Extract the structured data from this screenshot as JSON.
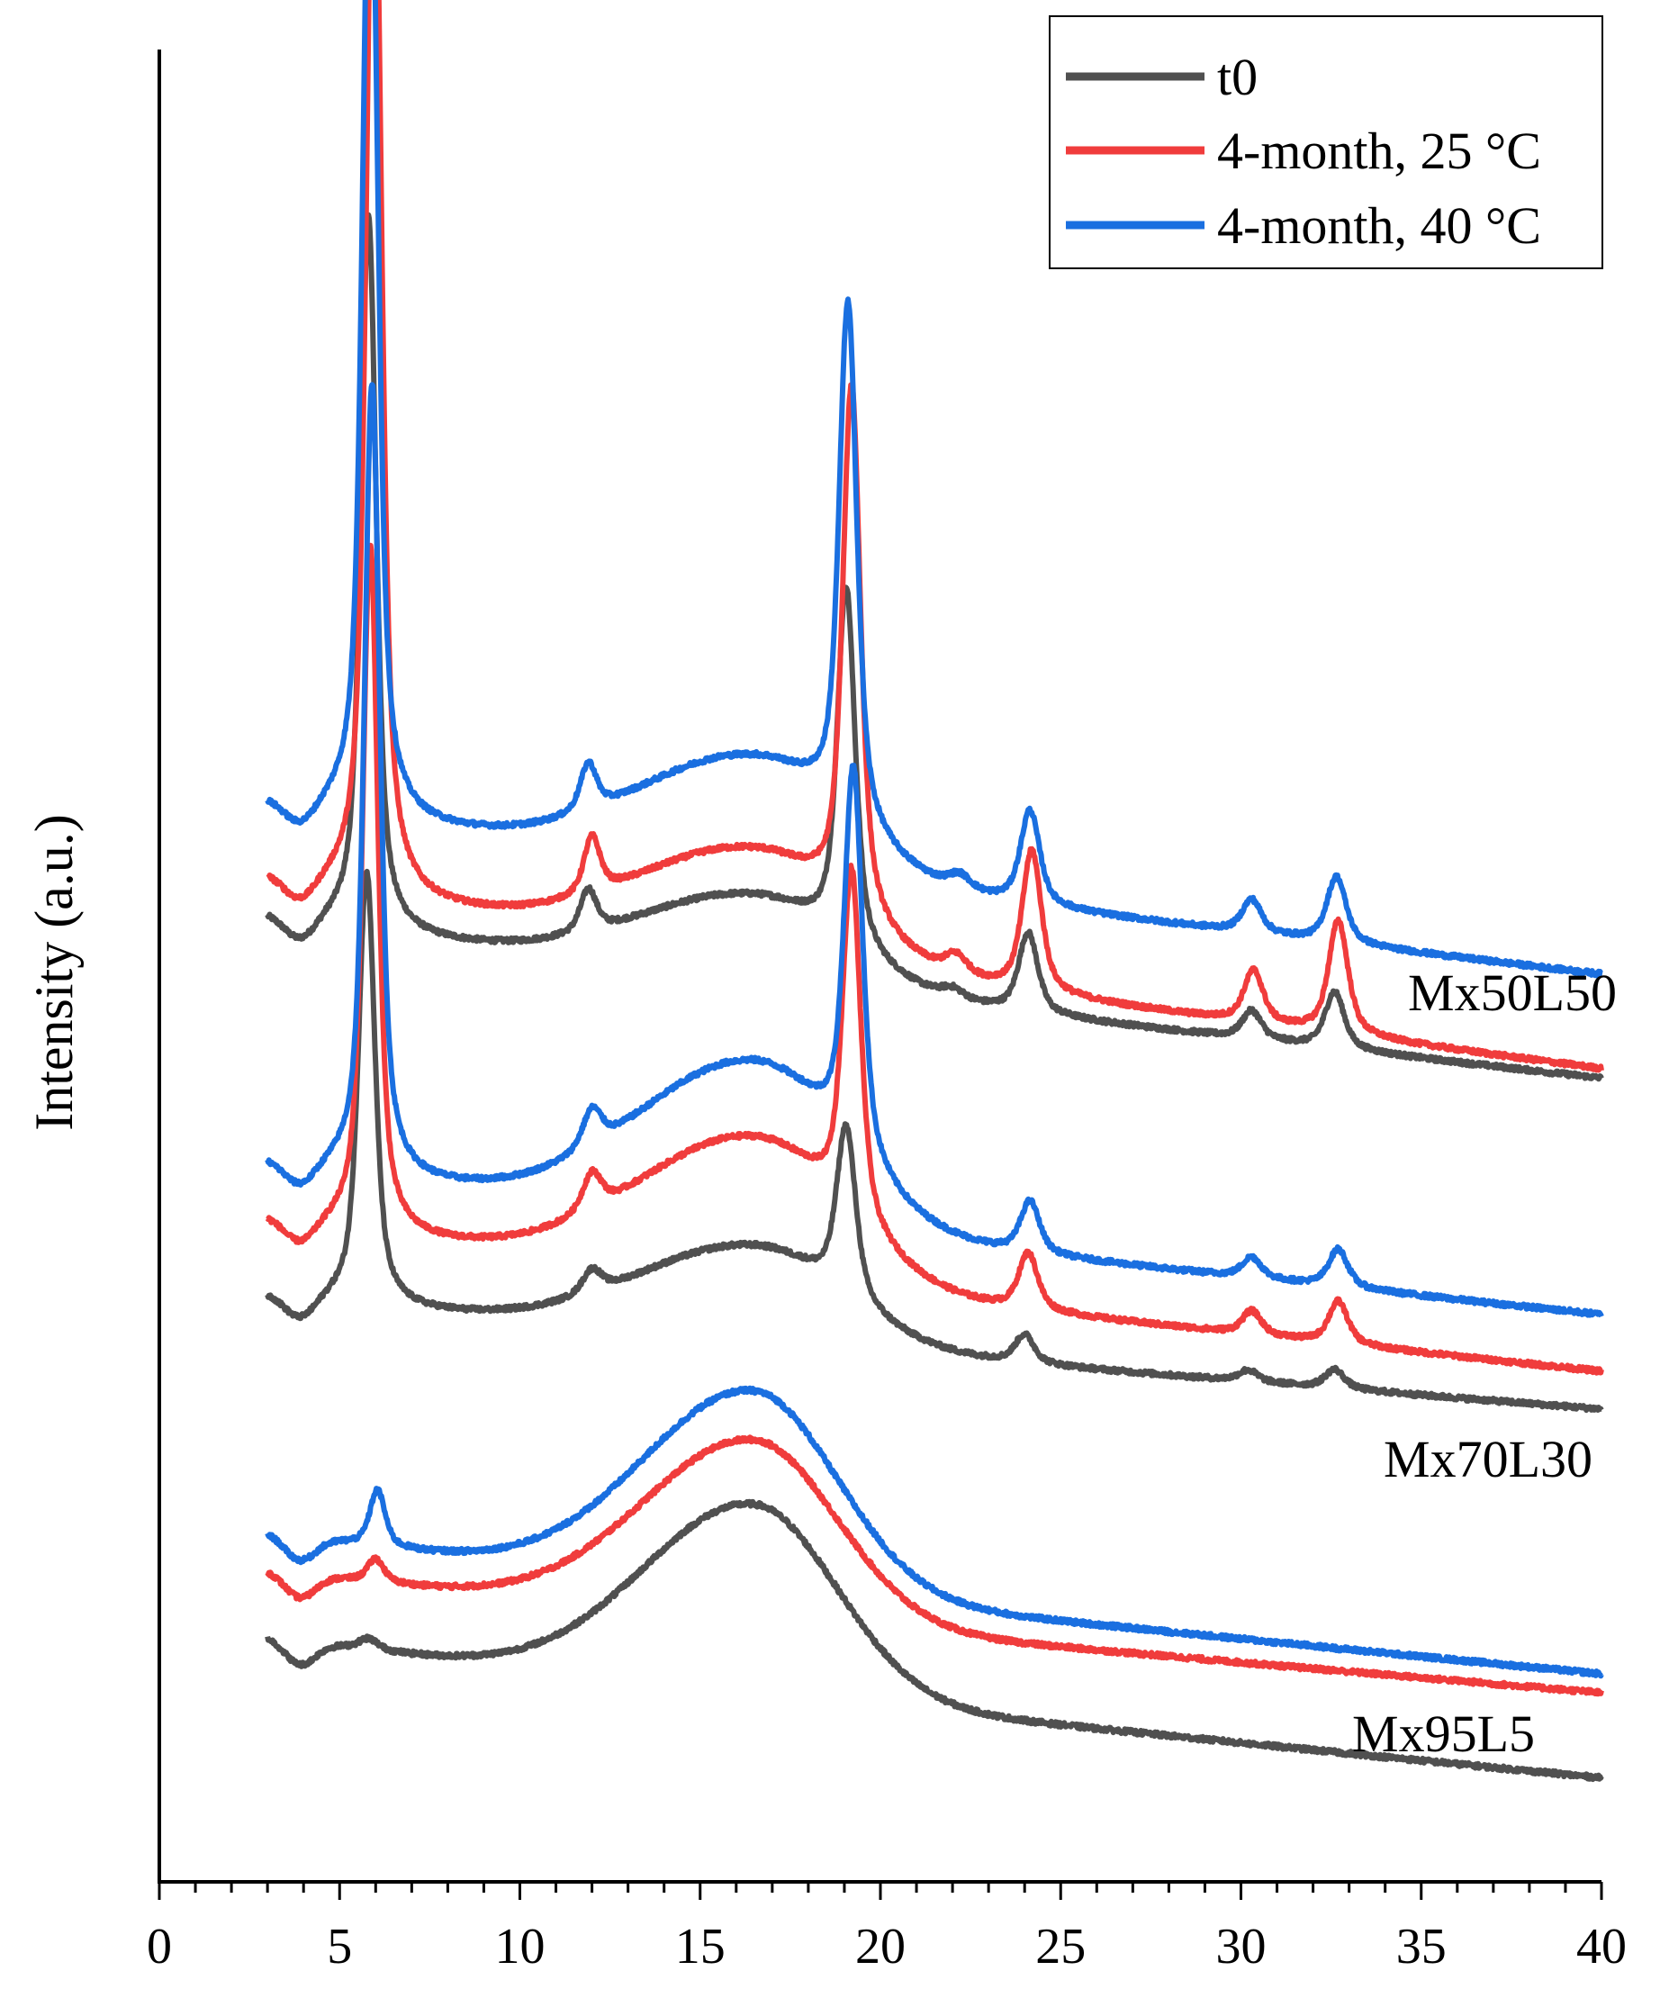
{
  "chart_data": {
    "type": "line",
    "title": "",
    "xlabel": "",
    "ylabel": "Intensity (a.u.)",
    "xlim": [
      0,
      40
    ],
    "x_major_ticks": [
      0,
      5,
      10,
      15,
      20,
      25,
      30,
      35,
      40
    ],
    "x_tick_labels": [
      "0",
      "5",
      "10",
      "15",
      "20",
      "25",
      "30",
      "35",
      "40"
    ],
    "yaxis_ticks": "none (arbitrary units, traces vertically offset)",
    "legend": {
      "placement": "top-right",
      "entries": [
        {
          "label": "t0",
          "color": "#505050"
        },
        {
          "label": "4-month, 25 °C",
          "color": "#f03c3c"
        },
        {
          "label": "4-month, 40 °C",
          "color": "#1a6fe0"
        }
      ]
    },
    "group_labels": [
      "Mx50L50",
      "Mx70L30",
      "Mx95L5"
    ],
    "x_range_of_traces": [
      3,
      40
    ],
    "description_of_traces": "Powder XRD patterns, three conditions per composition, stacked with vertical offsets (intensity in arbitrary units)",
    "groups": [
      {
        "name": "Mx50L50",
        "series": [
          {
            "name": "t0",
            "baseline_start": 2.2,
            "baseline_end": 0.5,
            "broad_hump": {
              "center": 16.5,
              "height": 0.9,
              "width": 4.5
            },
            "peaks": [
              {
                "x": 5.8,
                "height": 7.6,
                "width": 0.28
              },
              {
                "x": 11.9,
                "height": 0.45,
                "width": 0.3
              },
              {
                "x": 19.05,
                "height": 3.8,
                "width": 0.32
              },
              {
                "x": 22.0,
                "height": 0.1,
                "width": 0.4
              },
              {
                "x": 24.1,
                "height": 0.85,
                "width": 0.35
              },
              {
                "x": 30.3,
                "height": 0.3,
                "width": 0.35
              },
              {
                "x": 32.6,
                "height": 0.6,
                "width": 0.35
              }
            ]
          },
          {
            "name": "4-month, 25 °C",
            "baseline_start": 2.6,
            "baseline_end": 0.6,
            "broad_hump": {
              "center": 16.5,
              "height": 1.1,
              "width": 4.5
            },
            "peaks": [
              {
                "x": 5.95,
                "height": 12.0,
                "width": 0.28
              },
              {
                "x": 12.0,
                "height": 0.6,
                "width": 0.3
              },
              {
                "x": 19.2,
                "height": 5.6,
                "width": 0.32
              },
              {
                "x": 22.1,
                "height": 0.2,
                "width": 0.4
              },
              {
                "x": 24.2,
                "height": 1.5,
                "width": 0.35
              },
              {
                "x": 30.35,
                "height": 0.55,
                "width": 0.35
              },
              {
                "x": 32.7,
                "height": 1.2,
                "width": 0.35
              }
            ]
          },
          {
            "name": "4-month, 40 °C",
            "baseline_start": 3.4,
            "baseline_end": 1.6,
            "broad_hump": {
              "center": 16.5,
              "height": 1.2,
              "width": 4.5
            },
            "peaks": [
              {
                "x": 5.85,
                "height": 11.0,
                "width": 0.28
              },
              {
                "x": 11.9,
                "height": 0.5,
                "width": 0.3
              },
              {
                "x": 19.1,
                "height": 5.5,
                "width": 0.32
              },
              {
                "x": 22.2,
                "height": 0.15,
                "width": 0.4
              },
              {
                "x": 24.15,
                "height": 1.0,
                "width": 0.35
              },
              {
                "x": 30.3,
                "height": 0.35,
                "width": 0.35
              },
              {
                "x": 32.65,
                "height": 0.7,
                "width": 0.35
              }
            ]
          }
        ]
      },
      {
        "name": "Mx70L30",
        "series": [
          {
            "name": "t0",
            "baseline_start": -1.8,
            "baseline_end": -3.0,
            "broad_hump": {
              "center": 16.5,
              "height": 1.0,
              "width": 4.5
            },
            "peaks": [
              {
                "x": 5.75,
                "height": 4.6,
                "width": 0.3
              },
              {
                "x": 12.0,
                "height": 0.25,
                "width": 0.35
              },
              {
                "x": 19.05,
                "height": 1.8,
                "width": 0.35
              },
              {
                "x": 24.0,
                "height": 0.3,
                "width": 0.35
              },
              {
                "x": 30.2,
                "height": 0.12,
                "width": 0.35
              },
              {
                "x": 32.6,
                "height": 0.2,
                "width": 0.35
              }
            ]
          },
          {
            "name": "4-month, 25 °C",
            "baseline_start": -1.0,
            "baseline_end": -2.6,
            "broad_hump": {
              "center": 16.5,
              "height": 1.5,
              "width": 4.5
            },
            "peaks": [
              {
                "x": 5.85,
                "height": 7.3,
                "width": 0.28
              },
              {
                "x": 12.0,
                "height": 0.4,
                "width": 0.35
              },
              {
                "x": 19.2,
                "height": 3.7,
                "width": 0.33
              },
              {
                "x": 24.1,
                "height": 0.6,
                "width": 0.35
              },
              {
                "x": 30.3,
                "height": 0.25,
                "width": 0.35
              },
              {
                "x": 32.7,
                "height": 0.45,
                "width": 0.35
              }
            ]
          },
          {
            "name": "4-month, 40 °C",
            "baseline_start": -0.4,
            "baseline_end": -2.0,
            "broad_hump": {
              "center": 16.5,
              "height": 1.7,
              "width": 4.5
            },
            "peaks": [
              {
                "x": 5.9,
                "height": 8.4,
                "width": 0.28
              },
              {
                "x": 12.0,
                "height": 0.4,
                "width": 0.35
              },
              {
                "x": 19.25,
                "height": 4.1,
                "width": 0.33
              },
              {
                "x": 24.15,
                "height": 0.55,
                "width": 0.35
              },
              {
                "x": 30.3,
                "height": 0.22,
                "width": 0.35
              },
              {
                "x": 32.7,
                "height": 0.4,
                "width": 0.35
              }
            ]
          }
        ]
      },
      {
        "name": "Mx95L5",
        "series": [
          {
            "name": "t0",
            "baseline_start": -5.4,
            "baseline_end": -6.9,
            "broad_hump": {
              "center": 16.5,
              "height": 2.0,
              "width": 4.3
            },
            "peaks": [
              {
                "x": 5.8,
                "height": 0.12,
                "width": 0.35
              }
            ]
          },
          {
            "name": "4-month, 25 °C",
            "baseline_start": -4.7,
            "baseline_end": -6.0,
            "broad_hump": {
              "center": 16.5,
              "height": 1.9,
              "width": 4.3
            },
            "peaks": [
              {
                "x": 6.0,
                "height": 0.25,
                "width": 0.3
              }
            ]
          },
          {
            "name": "4-month, 40 °C",
            "baseline_start": -4.3,
            "baseline_end": -5.8,
            "broad_hump": {
              "center": 16.5,
              "height": 2.1,
              "width": 4.3
            },
            "peaks": [
              {
                "x": 6.05,
                "height": 0.6,
                "width": 0.28
              }
            ]
          }
        ]
      }
    ]
  },
  "ylabel_text": "Intensity (a.u.)"
}
